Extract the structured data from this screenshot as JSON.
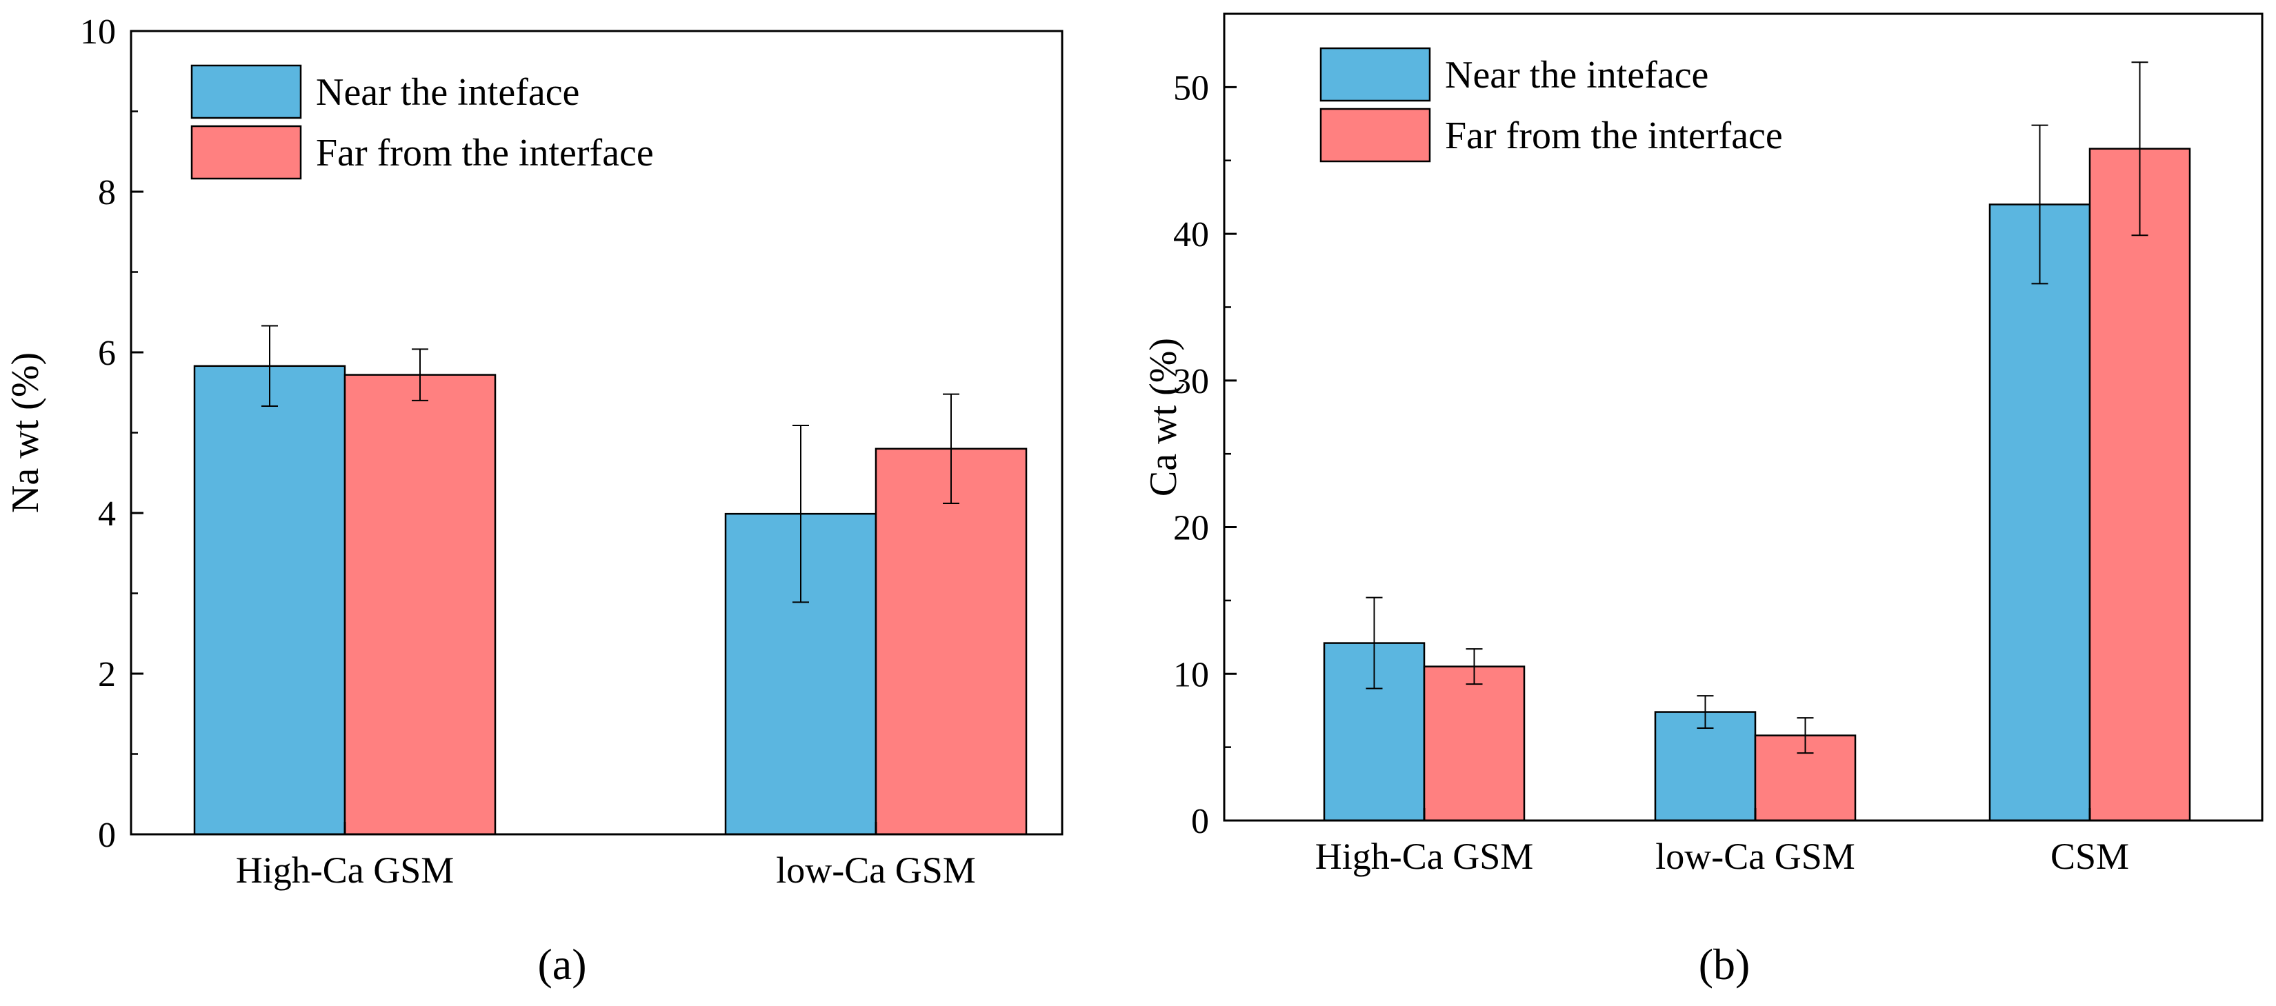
{
  "colors": {
    "near": "#5BB6E0",
    "far": "#FF8080",
    "axis": "#000000",
    "error_bar": "#000000"
  },
  "legend": {
    "near_label": "Near the inteface",
    "far_label": "Far from the interface"
  },
  "panel_a": {
    "caption": "(a)",
    "ylabel": "Na wt (%)"
  },
  "panel_b": {
    "caption": "(b)",
    "ylabel": "Ca wt (%)"
  },
  "chart_data": [
    {
      "type": "bar",
      "panel": "(a)",
      "categories": [
        "High-Ca GSM",
        "low-Ca GSM"
      ],
      "series": [
        {
          "name": "Near the inteface",
          "values": [
            5.83,
            3.99
          ],
          "errors": [
            0.5,
            1.1
          ]
        },
        {
          "name": "Far from the interface",
          "values": [
            5.72,
            4.8
          ],
          "errors": [
            0.32,
            0.68
          ]
        }
      ],
      "xlabel": "",
      "ylabel": "Na wt (%)",
      "ylim": [
        0,
        10
      ],
      "yticks": [
        0,
        2,
        4,
        6,
        8,
        10
      ],
      "grid": false,
      "legend_position": "top-left"
    },
    {
      "type": "bar",
      "panel": "(b)",
      "categories": [
        "High-Ca GSM",
        "low-Ca GSM",
        "CSM"
      ],
      "series": [
        {
          "name": "Near the inteface",
          "values": [
            12.1,
            7.4,
            42.0
          ],
          "errors": [
            3.1,
            1.1,
            5.4
          ]
        },
        {
          "name": "Far from the interface",
          "values": [
            10.5,
            5.8,
            45.8
          ],
          "errors": [
            1.2,
            1.2,
            5.9
          ]
        }
      ],
      "xlabel": "",
      "ylabel": "Ca wt (%)",
      "ylim": [
        0,
        55
      ],
      "yticks": [
        0,
        10,
        20,
        30,
        40,
        50
      ],
      "grid": false,
      "legend_position": "top-left"
    }
  ]
}
